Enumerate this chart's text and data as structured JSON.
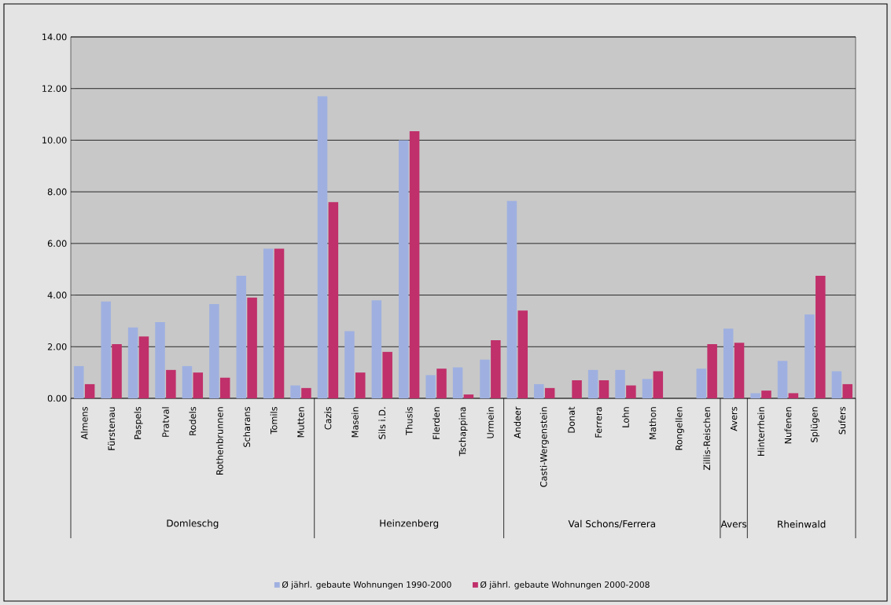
{
  "chart_data": {
    "type": "bar",
    "categories": [
      "Almens",
      "Fürstenau",
      "Paspels",
      "Pratval",
      "Rodels",
      "Rothenbrunnen",
      "Scharans",
      "Tomils",
      "Mutten",
      "Cazis",
      "Masein",
      "Sils i.D.",
      "Thusis",
      "Flerden",
      "Tschappina",
      "Urmein",
      "Andeer",
      "Casti-Wergenstein",
      "Donat",
      "Ferrera",
      "Lohn",
      "Mathon",
      "Rongellen",
      "Zillis-Reischen",
      "Avers",
      "Hinterrhein",
      "Nufenen",
      "Splügen",
      "Sufers"
    ],
    "series": [
      {
        "name": "Ø jährl. gebaute Wohnungen 1990-2000",
        "color": "#9fb0e0",
        "values": [
          1.25,
          3.75,
          2.75,
          2.95,
          1.25,
          3.65,
          4.75,
          5.8,
          0.5,
          11.7,
          2.6,
          3.8,
          10.0,
          0.9,
          1.2,
          1.5,
          7.65,
          0.55,
          0,
          1.1,
          1.1,
          0.75,
          0,
          1.15,
          2.7,
          0.2,
          1.45,
          3.25,
          1.05
        ]
      },
      {
        "name": "Ø jährl. gebaute Wohnungen 2000-2008",
        "color": "#c0306a",
        "values": [
          0.55,
          2.1,
          2.4,
          1.1,
          1.0,
          0.8,
          3.9,
          5.8,
          0.4,
          7.6,
          1.0,
          1.8,
          10.35,
          1.15,
          0.15,
          2.25,
          3.4,
          0.4,
          0.7,
          0.7,
          0.5,
          1.05,
          0,
          2.1,
          2.15,
          0.3,
          0.2,
          4.75,
          0.55
        ]
      }
    ],
    "annotations": [
      "Domleschg",
      "Heinzenberg",
      "Val Schons/Ferrera",
      "Avers",
      "Rheinwald"
    ],
    "ylim": [
      0,
      14
    ],
    "yticks": [
      {
        "value": 0,
        "label": "0.00"
      },
      {
        "value": 2,
        "label": "2.00"
      },
      {
        "value": 4,
        "label": "4.00"
      },
      {
        "value": 6,
        "label": "6.00"
      },
      {
        "value": 8,
        "label": "8.00"
      },
      {
        "value": 10,
        "label": "10.00"
      },
      {
        "value": 12,
        "label": "12.00"
      },
      {
        "value": 14,
        "label": "14.00"
      }
    ],
    "grid": "y",
    "legend": "bottom"
  }
}
